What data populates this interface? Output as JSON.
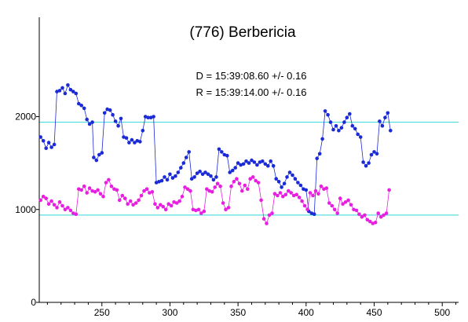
{
  "chart_data": {
    "type": "scatter",
    "title": "(776) Berbericia",
    "annotations": [
      "D = 15:39:08.60 +/- 0.16",
      "R = 15:39:14.00 +/- 0.16"
    ],
    "xlabel": "",
    "ylabel": "",
    "xlim": [
      204,
      512
    ],
    "ylim": [
      0,
      3070
    ],
    "x_ticks": [
      250,
      300,
      350,
      400,
      450,
      500
    ],
    "y_ticks": [
      0,
      1000,
      2000
    ],
    "reference_lines": [
      1940,
      940
    ],
    "colors": {
      "series1": "#1a2ad6",
      "series2": "#e81ee0",
      "reference": "#33d7d7"
    },
    "series": [
      {
        "marker": "dot",
        "points": [
          [
            205,
            1780
          ],
          [
            207,
            1740
          ],
          [
            209,
            1660
          ],
          [
            211,
            1720
          ],
          [
            213,
            1670
          ],
          [
            215,
            1700
          ],
          [
            217,
            2270
          ],
          [
            219,
            2280
          ],
          [
            221,
            2310
          ],
          [
            223,
            2250
          ],
          [
            225,
            2340
          ],
          [
            227,
            2290
          ],
          [
            229,
            2270
          ],
          [
            231,
            2250
          ],
          [
            233,
            2140
          ],
          [
            235,
            2120
          ],
          [
            237,
            2090
          ],
          [
            239,
            1970
          ],
          [
            241,
            1920
          ],
          [
            243,
            1940
          ],
          [
            244,
            1560
          ],
          [
            246,
            1530
          ],
          [
            248,
            1590
          ],
          [
            250,
            1610
          ],
          [
            252,
            2040
          ],
          [
            254,
            2080
          ],
          [
            256,
            2070
          ],
          [
            258,
            2020
          ],
          [
            260,
            1950
          ],
          [
            262,
            1900
          ],
          [
            264,
            1980
          ],
          [
            266,
            1780
          ],
          [
            268,
            1770
          ],
          [
            270,
            1720
          ],
          [
            272,
            1750
          ],
          [
            274,
            1720
          ],
          [
            276,
            1740
          ],
          [
            278,
            1730
          ],
          [
            280,
            1850
          ],
          [
            282,
            2000
          ],
          [
            284,
            1990
          ],
          [
            286,
            1990
          ],
          [
            288,
            2000
          ],
          [
            290,
            1290
          ],
          [
            292,
            1300
          ],
          [
            294,
            1310
          ],
          [
            296,
            1350
          ],
          [
            298,
            1320
          ],
          [
            300,
            1380
          ],
          [
            302,
            1340
          ],
          [
            304,
            1360
          ],
          [
            306,
            1400
          ],
          [
            308,
            1450
          ],
          [
            310,
            1500
          ],
          [
            312,
            1560
          ],
          [
            314,
            1620
          ],
          [
            316,
            1330
          ],
          [
            318,
            1350
          ],
          [
            320,
            1390
          ],
          [
            322,
            1410
          ],
          [
            324,
            1380
          ],
          [
            326,
            1400
          ],
          [
            328,
            1380
          ],
          [
            330,
            1360
          ],
          [
            332,
            1320
          ],
          [
            334,
            1350
          ],
          [
            336,
            1650
          ],
          [
            338,
            1620
          ],
          [
            340,
            1590
          ],
          [
            342,
            1580
          ],
          [
            344,
            1400
          ],
          [
            346,
            1420
          ],
          [
            348,
            1450
          ],
          [
            350,
            1500
          ],
          [
            352,
            1480
          ],
          [
            354,
            1490
          ],
          [
            356,
            1520
          ],
          [
            358,
            1500
          ],
          [
            360,
            1530
          ],
          [
            362,
            1510
          ],
          [
            364,
            1480
          ],
          [
            366,
            1510
          ],
          [
            368,
            1520
          ],
          [
            370,
            1490
          ],
          [
            372,
            1470
          ],
          [
            374,
            1520
          ],
          [
            376,
            1470
          ],
          [
            378,
            1330
          ],
          [
            380,
            1300
          ],
          [
            382,
            1240
          ],
          [
            384,
            1280
          ],
          [
            386,
            1350
          ],
          [
            388,
            1400
          ],
          [
            390,
            1370
          ],
          [
            392,
            1330
          ],
          [
            394,
            1290
          ],
          [
            396,
            1260
          ],
          [
            398,
            1220
          ],
          [
            400,
            1210
          ],
          [
            402,
            980
          ],
          [
            404,
            960
          ],
          [
            406,
            950
          ],
          [
            408,
            1550
          ],
          [
            410,
            1600
          ],
          [
            412,
            1760
          ],
          [
            414,
            2060
          ],
          [
            416,
            2020
          ],
          [
            418,
            1940
          ],
          [
            420,
            1860
          ],
          [
            422,
            1900
          ],
          [
            424,
            1850
          ],
          [
            426,
            1880
          ],
          [
            428,
            1940
          ],
          [
            430,
            1990
          ],
          [
            432,
            2030
          ],
          [
            434,
            1900
          ],
          [
            436,
            1870
          ],
          [
            438,
            1810
          ],
          [
            440,
            1780
          ],
          [
            442,
            1510
          ],
          [
            444,
            1470
          ],
          [
            446,
            1500
          ],
          [
            448,
            1590
          ],
          [
            450,
            1620
          ],
          [
            452,
            1600
          ],
          [
            454,
            1950
          ],
          [
            456,
            1900
          ],
          [
            458,
            1990
          ],
          [
            460,
            2040
          ],
          [
            462,
            1850
          ]
        ]
      },
      {
        "marker": "dot",
        "points": [
          [
            205,
            1100
          ],
          [
            207,
            1140
          ],
          [
            209,
            1120
          ],
          [
            211,
            1060
          ],
          [
            213,
            1090
          ],
          [
            215,
            1050
          ],
          [
            217,
            1020
          ],
          [
            219,
            1080
          ],
          [
            221,
            1040
          ],
          [
            223,
            1000
          ],
          [
            225,
            1020
          ],
          [
            227,
            990
          ],
          [
            229,
            960
          ],
          [
            231,
            950
          ],
          [
            233,
            1220
          ],
          [
            235,
            1210
          ],
          [
            237,
            1250
          ],
          [
            239,
            1180
          ],
          [
            241,
            1230
          ],
          [
            243,
            1200
          ],
          [
            245,
            1190
          ],
          [
            247,
            1210
          ],
          [
            249,
            1170
          ],
          [
            251,
            1140
          ],
          [
            253,
            1290
          ],
          [
            255,
            1320
          ],
          [
            257,
            1250
          ],
          [
            259,
            1220
          ],
          [
            261,
            1210
          ],
          [
            263,
            1100
          ],
          [
            265,
            1150
          ],
          [
            267,
            1120
          ],
          [
            269,
            1060
          ],
          [
            271,
            1090
          ],
          [
            273,
            1050
          ],
          [
            275,
            1070
          ],
          [
            277,
            1100
          ],
          [
            279,
            1150
          ],
          [
            281,
            1200
          ],
          [
            283,
            1220
          ],
          [
            285,
            1180
          ],
          [
            287,
            1190
          ],
          [
            289,
            1060
          ],
          [
            291,
            1020
          ],
          [
            293,
            1050
          ],
          [
            295,
            1030
          ],
          [
            297,
            1000
          ],
          [
            299,
            1060
          ],
          [
            301,
            1040
          ],
          [
            303,
            1080
          ],
          [
            305,
            1070
          ],
          [
            307,
            1090
          ],
          [
            309,
            1140
          ],
          [
            311,
            1240
          ],
          [
            313,
            1220
          ],
          [
            315,
            1200
          ],
          [
            317,
            1000
          ],
          [
            319,
            990
          ],
          [
            321,
            1000
          ],
          [
            323,
            960
          ],
          [
            325,
            980
          ],
          [
            327,
            1220
          ],
          [
            329,
            1200
          ],
          [
            331,
            1190
          ],
          [
            333,
            1240
          ],
          [
            335,
            1280
          ],
          [
            337,
            1250
          ],
          [
            339,
            1070
          ],
          [
            341,
            1000
          ],
          [
            343,
            1020
          ],
          [
            345,
            1250
          ],
          [
            347,
            1300
          ],
          [
            349,
            1330
          ],
          [
            351,
            1280
          ],
          [
            353,
            1200
          ],
          [
            355,
            1260
          ],
          [
            357,
            1220
          ],
          [
            359,
            1330
          ],
          [
            361,
            1350
          ],
          [
            363,
            1310
          ],
          [
            365,
            1290
          ],
          [
            367,
            1100
          ],
          [
            369,
            900
          ],
          [
            371,
            850
          ],
          [
            373,
            940
          ],
          [
            375,
            960
          ],
          [
            377,
            1170
          ],
          [
            379,
            1150
          ],
          [
            381,
            1180
          ],
          [
            383,
            1140
          ],
          [
            385,
            1160
          ],
          [
            387,
            1200
          ],
          [
            389,
            1180
          ],
          [
            391,
            1150
          ],
          [
            393,
            1160
          ],
          [
            395,
            1130
          ],
          [
            397,
            1090
          ],
          [
            399,
            1040
          ],
          [
            401,
            1000
          ],
          [
            403,
            1180
          ],
          [
            405,
            1150
          ],
          [
            407,
            1200
          ],
          [
            409,
            1170
          ],
          [
            411,
            1250
          ],
          [
            413,
            1220
          ],
          [
            415,
            1230
          ],
          [
            417,
            1070
          ],
          [
            419,
            1040
          ],
          [
            421,
            1000
          ],
          [
            423,
            960
          ],
          [
            425,
            1120
          ],
          [
            427,
            1060
          ],
          [
            429,
            1080
          ],
          [
            431,
            1100
          ],
          [
            433,
            1050
          ],
          [
            435,
            1000
          ],
          [
            437,
            990
          ],
          [
            439,
            950
          ],
          [
            441,
            920
          ],
          [
            443,
            940
          ],
          [
            445,
            890
          ],
          [
            447,
            870
          ],
          [
            449,
            850
          ],
          [
            451,
            860
          ],
          [
            453,
            960
          ],
          [
            455,
            920
          ],
          [
            457,
            940
          ],
          [
            459,
            960
          ],
          [
            461,
            1210
          ]
        ]
      }
    ]
  }
}
